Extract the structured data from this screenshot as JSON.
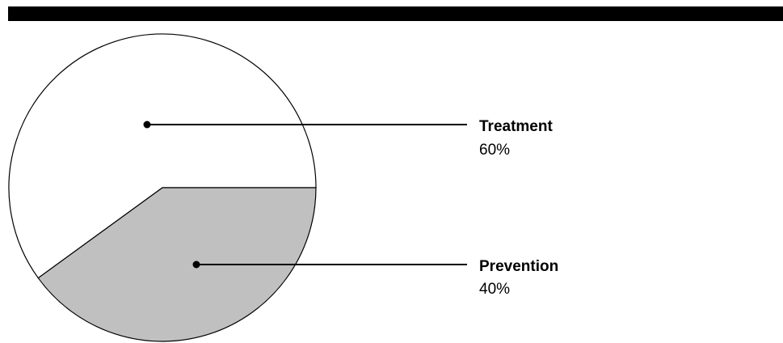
{
  "chart_data": {
    "type": "pie",
    "title": "",
    "slices": [
      {
        "label": "Treatment",
        "value": 60,
        "value_label": "60%",
        "color": "#ffffff"
      },
      {
        "label": "Prevention",
        "value": 40,
        "value_label": "40%",
        "color": "#c0c0c0"
      }
    ],
    "legend": "none",
    "labels": "leader-lines-right"
  },
  "colors": {
    "top_bar": "#000000",
    "outline": "#000000",
    "background": "#ffffff"
  }
}
